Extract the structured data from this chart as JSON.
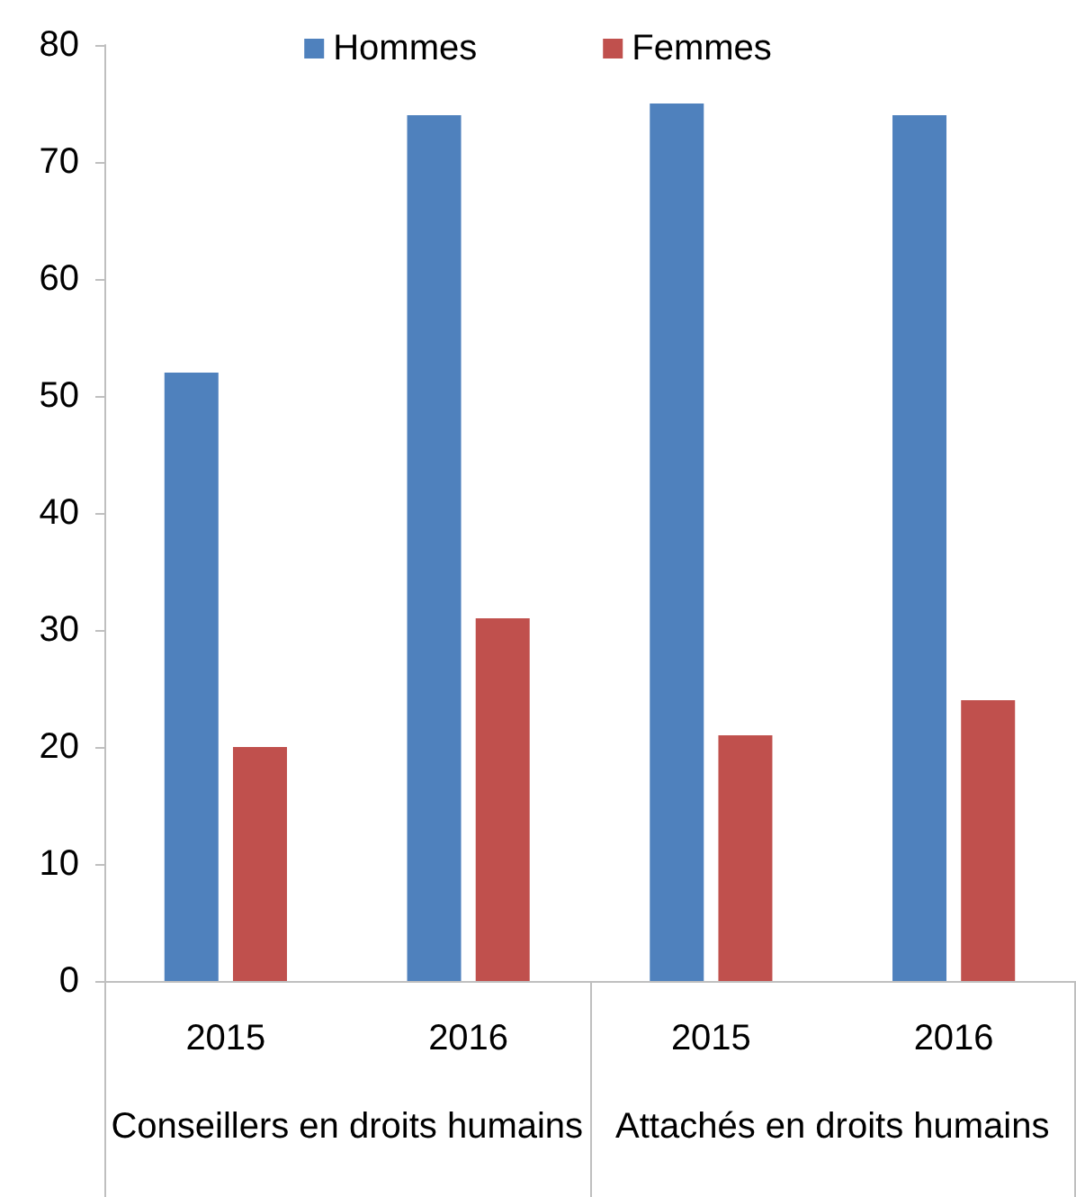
{
  "chart_data": {
    "type": "bar",
    "categories": [
      "2015",
      "2016",
      "2015",
      "2016"
    ],
    "annotations": [
      "Conseillers en droits humains",
      "Attachés en droits humains"
    ],
    "series": [
      {
        "name": "Hommes",
        "color": "#4f81bd",
        "values": [
          52,
          74,
          75,
          74
        ]
      },
      {
        "name": "Femmes",
        "color": "#c0504d",
        "values": [
          20,
          31,
          21,
          24
        ]
      }
    ],
    "ylim": [
      0,
      80
    ],
    "yticks": [
      0,
      10,
      20,
      30,
      40,
      50,
      60,
      70,
      80
    ],
    "grid": false,
    "legend": "top"
  }
}
